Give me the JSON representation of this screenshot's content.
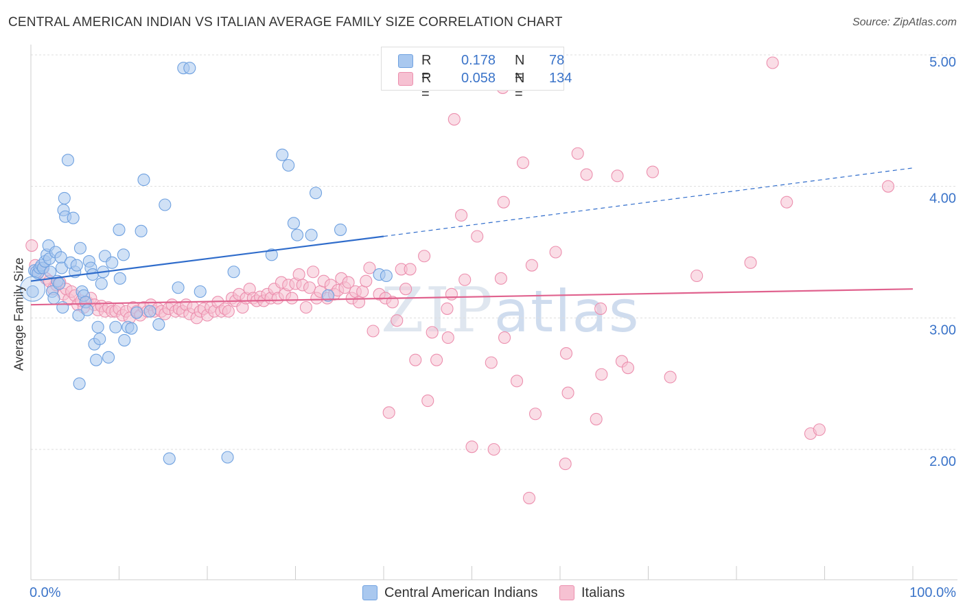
{
  "title": "CENTRAL AMERICAN INDIAN VS ITALIAN AVERAGE FAMILY SIZE CORRELATION CHART",
  "source": "Source: ZipAtlas.com",
  "watermark": {
    "zip": "ZIP",
    "atlas": "atlas"
  },
  "legend": {
    "rows": [
      {
        "r_label": "R =",
        "r_value": "0.178",
        "n_label": "N =",
        "n_value": "78",
        "color": "#6fa1e0"
      },
      {
        "r_label": "R =",
        "r_value": "0.058",
        "n_label": "N =",
        "n_value": "134",
        "color": "#f08aaa"
      }
    ]
  },
  "bottom_legend": [
    "Central American Indians",
    "Italians"
  ],
  "colors": {
    "blue_fill": "#a9c8ef",
    "blue_stroke": "#6fa1e0",
    "blue_line": "#2f6ccb",
    "pink_fill": "#f6c1d2",
    "pink_stroke": "#ec8fae",
    "pink_line": "#e0628e",
    "tick_text": "#3b74c9",
    "grid": "#dddddd"
  },
  "chart_data": {
    "type": "scatter",
    "title": "CENTRAL AMERICAN INDIAN VS ITALIAN AVERAGE FAMILY SIZE CORRELATION CHART",
    "xlabel": "",
    "ylabel": "Average Family Size",
    "xlim": [
      0,
      100
    ],
    "ylim": [
      1.0,
      5.1
    ],
    "x_tick_labels": [
      "0.0%",
      "100.0%"
    ],
    "y_ticks": [
      2.0,
      3.0,
      4.0,
      5.0
    ],
    "y_tick_labels": [
      "2.00",
      "3.00",
      "4.00",
      "5.00"
    ],
    "grid": true,
    "legend_position": "top-center",
    "series": [
      {
        "name": "Central American Indians",
        "r": 0.178,
        "n": 78,
        "trend": {
          "x_start": 0,
          "y_start": 3.28,
          "x_solid_end": 40,
          "y_solid_end": 3.62,
          "x_end": 100,
          "y_end": 4.14
        },
        "points": [
          [
            0.2,
            3.2
          ],
          [
            0.4,
            3.36
          ],
          [
            0.6,
            3.35
          ],
          [
            0.8,
            3.34
          ],
          [
            1.0,
            3.38
          ],
          [
            1.2,
            3.4
          ],
          [
            1.4,
            3.38
          ],
          [
            1.6,
            3.43
          ],
          [
            1.8,
            3.48
          ],
          [
            2.0,
            3.55
          ],
          [
            2.1,
            3.45
          ],
          [
            2.2,
            3.35
          ],
          [
            2.4,
            3.2
          ],
          [
            2.6,
            3.15
          ],
          [
            2.8,
            3.5
          ],
          [
            3.0,
            3.28
          ],
          [
            3.2,
            3.26
          ],
          [
            3.4,
            3.46
          ],
          [
            3.5,
            3.38
          ],
          [
            3.6,
            3.08
          ],
          [
            3.7,
            3.82
          ],
          [
            3.8,
            3.91
          ],
          [
            3.9,
            3.77
          ],
          [
            4.2,
            4.2
          ],
          [
            4.5,
            3.42
          ],
          [
            4.8,
            3.76
          ],
          [
            5.0,
            3.35
          ],
          [
            5.2,
            3.4
          ],
          [
            5.4,
            3.02
          ],
          [
            5.5,
            2.5
          ],
          [
            5.6,
            3.53
          ],
          [
            5.8,
            3.2
          ],
          [
            6.0,
            3.17
          ],
          [
            6.2,
            3.12
          ],
          [
            6.4,
            3.06
          ],
          [
            6.6,
            3.43
          ],
          [
            6.8,
            3.38
          ],
          [
            7.0,
            3.33
          ],
          [
            7.2,
            2.8
          ],
          [
            7.4,
            2.68
          ],
          [
            7.6,
            2.93
          ],
          [
            7.8,
            2.84
          ],
          [
            8.0,
            3.26
          ],
          [
            8.2,
            3.35
          ],
          [
            8.4,
            3.47
          ],
          [
            8.8,
            2.7
          ],
          [
            9.2,
            3.42
          ],
          [
            9.6,
            2.93
          ],
          [
            10.0,
            3.67
          ],
          [
            10.1,
            3.3
          ],
          [
            10.5,
            3.48
          ],
          [
            10.6,
            2.83
          ],
          [
            11.0,
            2.93
          ],
          [
            11.4,
            2.92
          ],
          [
            12.0,
            3.04
          ],
          [
            12.5,
            3.66
          ],
          [
            12.8,
            4.05
          ],
          [
            13.5,
            3.05
          ],
          [
            14.5,
            2.95
          ],
          [
            15.2,
            3.86
          ],
          [
            15.7,
            1.93
          ],
          [
            16.7,
            3.23
          ],
          [
            17.3,
            4.9
          ],
          [
            18.0,
            4.9
          ],
          [
            19.2,
            3.2
          ],
          [
            22.3,
            1.94
          ],
          [
            23.0,
            3.35
          ],
          [
            27.3,
            3.48
          ],
          [
            28.5,
            4.24
          ],
          [
            29.2,
            4.16
          ],
          [
            29.8,
            3.72
          ],
          [
            30.2,
            3.63
          ],
          [
            31.8,
            3.63
          ],
          [
            32.3,
            3.95
          ],
          [
            33.7,
            3.17
          ],
          [
            35.1,
            3.67
          ],
          [
            39.5,
            3.33
          ],
          [
            40.3,
            3.32
          ]
        ]
      },
      {
        "name": "Italians",
        "r": 0.058,
        "n": 134,
        "trend": {
          "x_start": 0,
          "y_start": 3.1,
          "x_end": 100,
          "y_end": 3.22
        },
        "points": [
          [
            0.1,
            3.55
          ],
          [
            0.5,
            3.4
          ],
          [
            0.9,
            3.35
          ],
          [
            1.3,
            3.38
          ],
          [
            1.7,
            3.3
          ],
          [
            2.1,
            3.28
          ],
          [
            2.5,
            3.22
          ],
          [
            2.9,
            3.25
          ],
          [
            3.3,
            3.27
          ],
          [
            3.7,
            3.18
          ],
          [
            4.0,
            3.22
          ],
          [
            4.3,
            3.14
          ],
          [
            4.6,
            3.2
          ],
          [
            5.0,
            3.17
          ],
          [
            5.3,
            3.1
          ],
          [
            5.7,
            3.13
          ],
          [
            6.0,
            3.08
          ],
          [
            6.4,
            3.12
          ],
          [
            6.8,
            3.15
          ],
          [
            7.2,
            3.1
          ],
          [
            7.6,
            3.06
          ],
          [
            8.0,
            3.09
          ],
          [
            8.4,
            3.05
          ],
          [
            8.8,
            3.08
          ],
          [
            9.2,
            3.05
          ],
          [
            9.6,
            3.05
          ],
          [
            10.0,
            3.07
          ],
          [
            10.4,
            3.02
          ],
          [
            10.8,
            3.05
          ],
          [
            11.2,
            3.0
          ],
          [
            11.6,
            3.08
          ],
          [
            12.0,
            3.05
          ],
          [
            12.4,
            3.02
          ],
          [
            12.8,
            3.08
          ],
          [
            13.2,
            3.05
          ],
          [
            13.6,
            3.1
          ],
          [
            14.0,
            3.05
          ],
          [
            14.4,
            3.07
          ],
          [
            14.8,
            3.05
          ],
          [
            15.2,
            3.03
          ],
          [
            15.6,
            3.07
          ],
          [
            16.0,
            3.1
          ],
          [
            16.4,
            3.05
          ],
          [
            16.8,
            3.07
          ],
          [
            17.2,
            3.05
          ],
          [
            17.6,
            3.1
          ],
          [
            18.0,
            3.03
          ],
          [
            18.4,
            3.08
          ],
          [
            18.8,
            3.0
          ],
          [
            19.2,
            3.05
          ],
          [
            19.6,
            3.07
          ],
          [
            20.0,
            3.02
          ],
          [
            20.4,
            3.08
          ],
          [
            20.8,
            3.05
          ],
          [
            21.2,
            3.12
          ],
          [
            21.6,
            3.05
          ],
          [
            22.0,
            3.07
          ],
          [
            22.4,
            3.05
          ],
          [
            22.8,
            3.15
          ],
          [
            23.2,
            3.13
          ],
          [
            23.6,
            3.18
          ],
          [
            24.0,
            3.08
          ],
          [
            24.4,
            3.15
          ],
          [
            24.8,
            3.22
          ],
          [
            25.2,
            3.15
          ],
          [
            25.6,
            3.13
          ],
          [
            26.0,
            3.16
          ],
          [
            26.4,
            3.13
          ],
          [
            26.8,
            3.18
          ],
          [
            27.2,
            3.15
          ],
          [
            27.6,
            3.22
          ],
          [
            28.0,
            3.15
          ],
          [
            28.4,
            3.27
          ],
          [
            28.8,
            3.18
          ],
          [
            29.2,
            3.25
          ],
          [
            29.6,
            3.15
          ],
          [
            30.0,
            3.26
          ],
          [
            30.4,
            3.33
          ],
          [
            30.8,
            3.25
          ],
          [
            31.2,
            3.08
          ],
          [
            31.6,
            3.23
          ],
          [
            32.0,
            3.35
          ],
          [
            32.4,
            3.15
          ],
          [
            32.8,
            3.2
          ],
          [
            33.2,
            3.28
          ],
          [
            33.6,
            3.15
          ],
          [
            34.0,
            3.25
          ],
          [
            34.4,
            3.18
          ],
          [
            34.8,
            3.21
          ],
          [
            35.2,
            3.3
          ],
          [
            35.6,
            3.23
          ],
          [
            36.0,
            3.27
          ],
          [
            36.4,
            3.15
          ],
          [
            36.8,
            3.2
          ],
          [
            37.2,
            3.12
          ],
          [
            37.6,
            3.2
          ],
          [
            38.0,
            3.28
          ],
          [
            38.4,
            3.38
          ],
          [
            38.8,
            2.9
          ],
          [
            39.5,
            3.18
          ],
          [
            40.2,
            3.15
          ],
          [
            40.6,
            2.28
          ],
          [
            41.0,
            3.12
          ],
          [
            41.5,
            2.98
          ],
          [
            42.0,
            3.37
          ],
          [
            42.5,
            3.22
          ],
          [
            43.0,
            3.37
          ],
          [
            43.6,
            2.68
          ],
          [
            44.6,
            3.47
          ],
          [
            46.0,
            2.68
          ],
          [
            47.2,
            3.07
          ],
          [
            48.8,
            3.78
          ],
          [
            50.6,
            3.62
          ],
          [
            52.2,
            2.66
          ],
          [
            53.3,
            3.3
          ],
          [
            53.6,
            3.88
          ],
          [
            55.1,
            2.52
          ],
          [
            56.8,
            3.4
          ],
          [
            59.5,
            3.5
          ],
          [
            63.0,
            4.09
          ],
          [
            67.0,
            2.67
          ],
          [
            75.5,
            3.32
          ],
          [
            81.6,
            3.42
          ],
          [
            85.7,
            3.88
          ],
          [
            88.4,
            2.12
          ],
          [
            89.4,
            2.15
          ],
          [
            97.2,
            4.0
          ],
          [
            84.1,
            4.94
          ]
        ],
        "extra_points": [
          [
            45.0,
            2.37
          ],
          [
            47.7,
            3.18
          ],
          [
            48.0,
            4.51
          ],
          [
            50.0,
            2.02
          ],
          [
            52.5,
            2.0
          ],
          [
            53.5,
            4.75
          ],
          [
            53.7,
            2.85
          ],
          [
            55.8,
            4.18
          ],
          [
            56.5,
            1.63
          ],
          [
            57.2,
            2.27
          ],
          [
            62.0,
            4.25
          ],
          [
            66.5,
            4.08
          ],
          [
            70.5,
            4.11
          ],
          [
            72.5,
            2.55
          ],
          [
            45.5,
            2.89
          ],
          [
            64.6,
            3.07
          ],
          [
            64.7,
            2.57
          ],
          [
            60.7,
            2.73
          ],
          [
            64.1,
            2.23
          ],
          [
            67.7,
            2.62
          ],
          [
            60.9,
            2.43
          ],
          [
            60.6,
            1.89
          ],
          [
            47.3,
            2.85
          ],
          [
            49.2,
            3.29
          ]
        ]
      }
    ]
  }
}
